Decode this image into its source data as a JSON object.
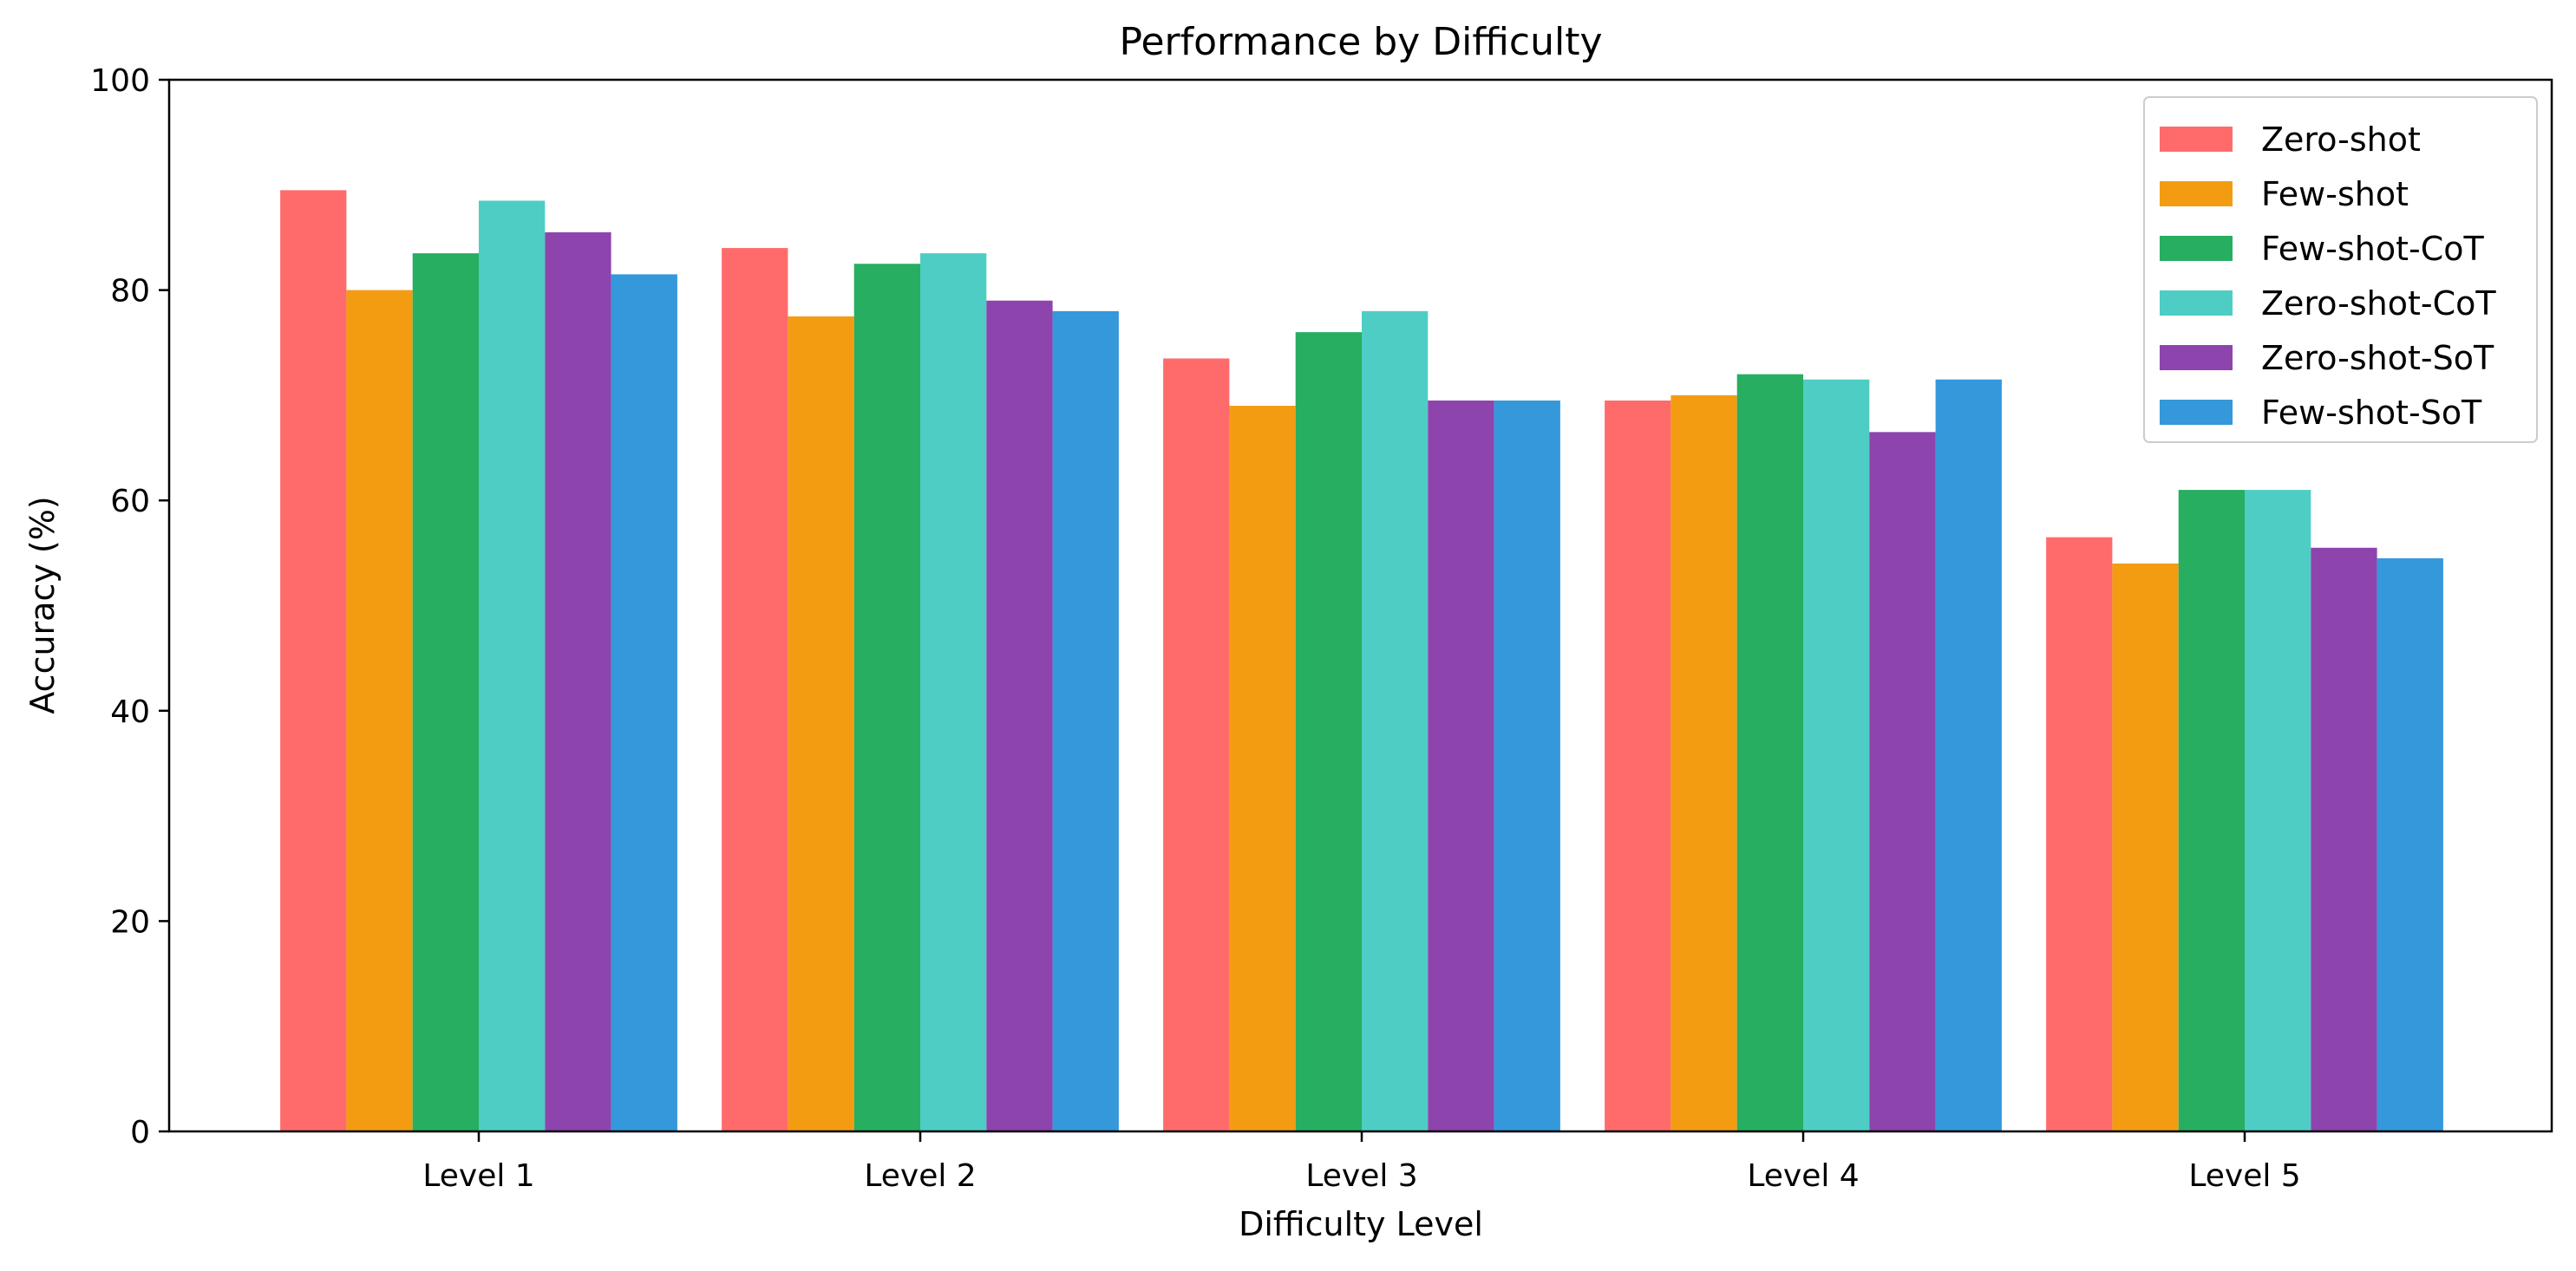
{
  "chart_data": {
    "type": "bar",
    "title": "Performance by Difficulty",
    "xlabel": "Difficulty Level",
    "ylabel": "Accuracy (%)",
    "ylim": [
      0,
      100
    ],
    "yticks": [
      0,
      20,
      40,
      60,
      80,
      100
    ],
    "grid": false,
    "legend_position": "top-right",
    "categories": [
      "Level 1",
      "Level 2",
      "Level 3",
      "Level 4",
      "Level 5"
    ],
    "series": [
      {
        "name": "Zero-shot",
        "color": "#ff6b6b",
        "values": [
          89.5,
          84.0,
          73.5,
          69.5,
          56.5
        ]
      },
      {
        "name": "Few-shot",
        "color": "#f39c12",
        "values": [
          80.0,
          77.5,
          69.0,
          70.0,
          54.0
        ]
      },
      {
        "name": "Few-shot-CoT",
        "color": "#27ae60",
        "values": [
          83.5,
          82.5,
          76.0,
          72.0,
          61.0
        ]
      },
      {
        "name": "Zero-shot-CoT",
        "color": "#4ecdc4",
        "values": [
          88.5,
          83.5,
          78.0,
          71.5,
          61.0
        ]
      },
      {
        "name": "Zero-shot-SoT",
        "color": "#8e44ad",
        "values": [
          85.5,
          79.0,
          69.5,
          66.5,
          55.5
        ]
      },
      {
        "name": "Few-shot-SoT",
        "color": "#3498db",
        "values": [
          81.5,
          78.0,
          69.5,
          71.5,
          54.5
        ]
      }
    ]
  }
}
